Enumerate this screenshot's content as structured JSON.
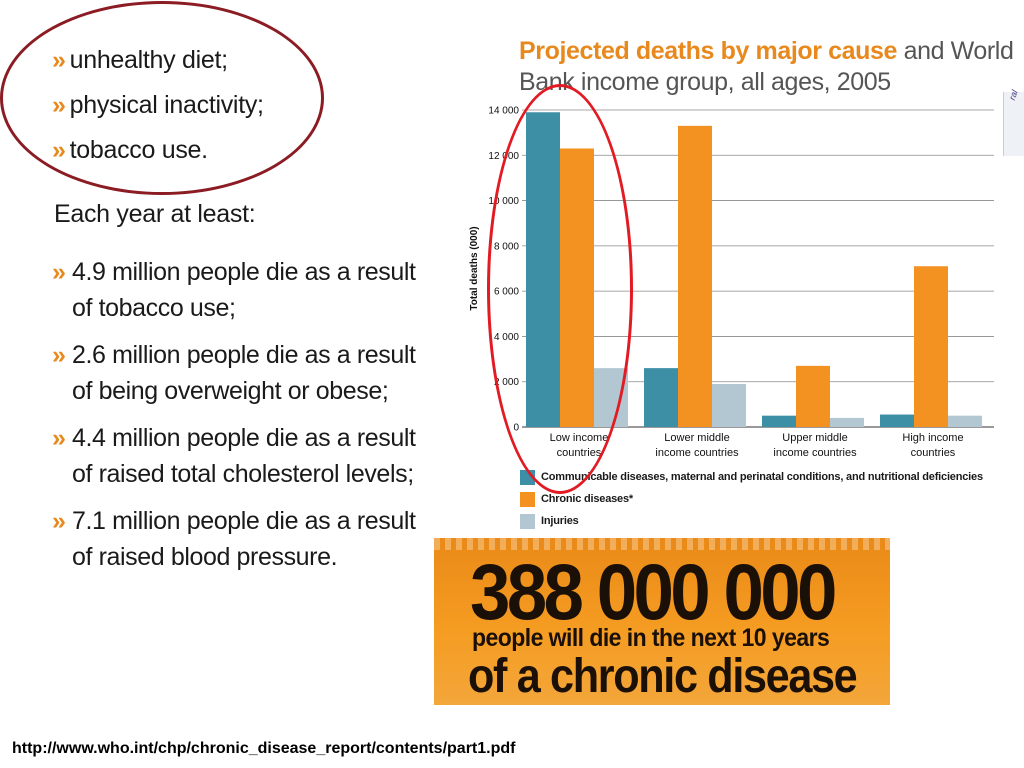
{
  "risk_factors": [
    "unhealthy diet;",
    "physical inactivity;",
    "tobacco use."
  ],
  "bullet_glyph": "»",
  "each_year_heading": "Each year at least:",
  "facts": [
    "4.9 million people die as a result of tobacco use;",
    "2.6 million people die as a result of being overweight or obese;",
    "4.4 million people die as a result of raised total cholesterol levels;",
    "7.1 million people die as a result of raised blood pressure."
  ],
  "chart_data": {
    "type": "bar",
    "title": "Projected deaths by major cause",
    "subtitle": "and World Bank income group, all ages, 2005",
    "xlabel": "",
    "ylabel": "Total deaths (000)",
    "ylim": [
      0,
      14000
    ],
    "yticks": [
      "0",
      "2 000",
      "4 000",
      "6 000",
      "8 000",
      "10 000",
      "12 000",
      "14 000"
    ],
    "grid": true,
    "legend_position": "bottom",
    "categories": [
      "Low income countries",
      "Lower middle income countries",
      "Upper middle income countries",
      "High income countries"
    ],
    "category_lines": [
      [
        "Low income",
        "countries"
      ],
      [
        "Lower middle",
        "income countries"
      ],
      [
        "Upper middle",
        "income countries"
      ],
      [
        "High income",
        "countries"
      ]
    ],
    "series": [
      {
        "name": "Communicable diseases, maternal and perinatal conditions, and nutritional deficiencies",
        "color": "#3d8fa6",
        "values": [
          13900,
          2600,
          500,
          550
        ]
      },
      {
        "name": "Chronic diseases*",
        "color": "#f39220",
        "values": [
          12300,
          13300,
          2700,
          7100
        ]
      },
      {
        "name": "Injuries",
        "color": "#b3c7d3",
        "values": [
          2600,
          1900,
          400,
          500
        ]
      }
    ]
  },
  "banner": {
    "number": "388 000 000",
    "line1": "people will die in the next 10 years",
    "line2": "of a chronic disease"
  },
  "side_mark_text": "ral",
  "source_url": "http://www.who.int/chp/chronic_disease_report/contents/part1.pdf"
}
